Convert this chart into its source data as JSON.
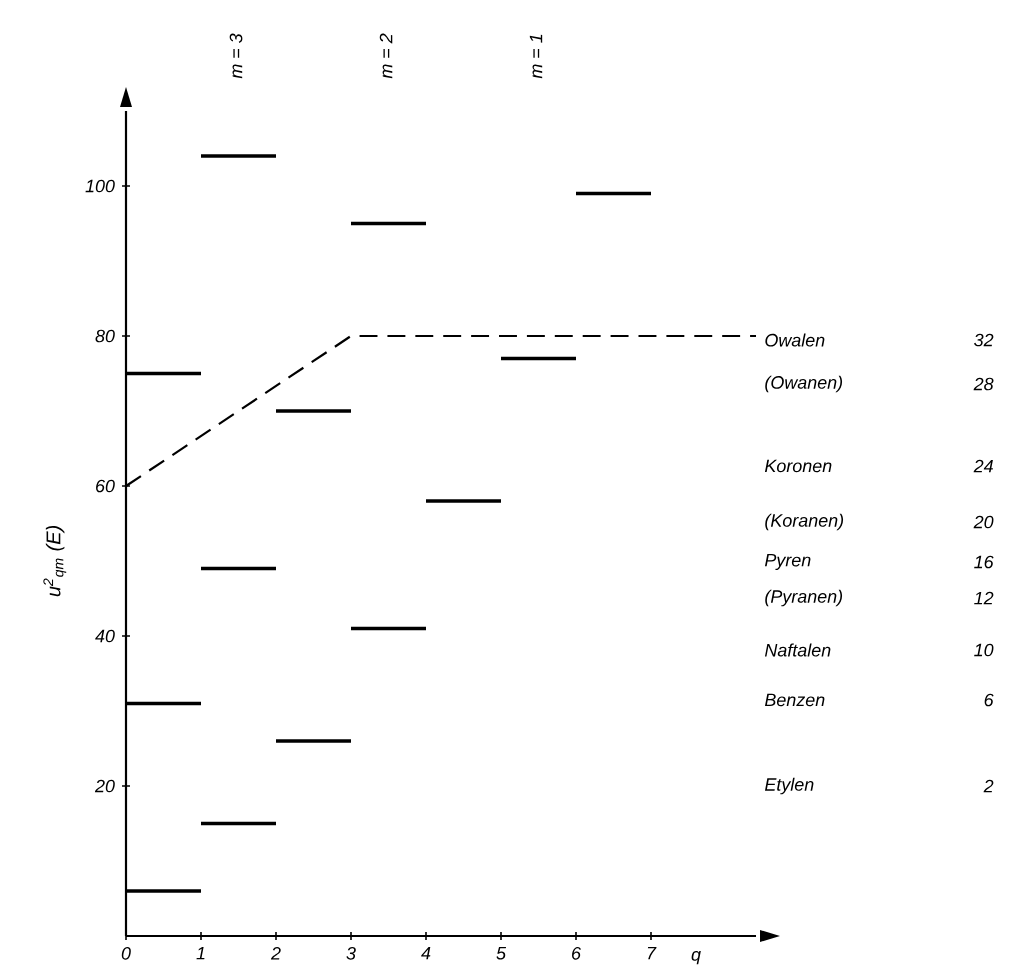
{
  "chart_data": {
    "type": "line",
    "xlabel": "q",
    "ylabel": "u$^{2}$$_{qm}$ (E)",
    "xlim": [
      0,
      8.4
    ],
    "ylim": [
      0,
      110
    ],
    "xticks": [
      0,
      1,
      2,
      3,
      4,
      5,
      6,
      7
    ],
    "yticks": [
      20,
      40,
      60,
      80,
      100
    ],
    "series": [
      {
        "color": "#000000",
        "x": [
          0,
          1
        ],
        "values": [
          6,
          6
        ]
      },
      {
        "color": "#000000",
        "x": [
          0,
          1
        ],
        "values": [
          31,
          31
        ]
      },
      {
        "color": "#000000",
        "x": [
          0,
          1
        ],
        "values": [
          75,
          75
        ]
      },
      {
        "color": "#000000",
        "x": [
          1,
          2
        ],
        "values": [
          15,
          15
        ]
      },
      {
        "color": "#000000",
        "x": [
          1,
          2
        ],
        "values": [
          49,
          49
        ]
      },
      {
        "color": "#000000",
        "x": [
          1,
          2
        ],
        "values": [
          104,
          104
        ]
      },
      {
        "color": "#000000",
        "x": [
          2,
          3
        ],
        "values": [
          26,
          26
        ]
      },
      {
        "color": "#000000",
        "x": [
          2,
          3
        ],
        "values": [
          70,
          70
        ]
      },
      {
        "color": "#000000",
        "x": [
          3,
          4
        ],
        "values": [
          41,
          41
        ]
      },
      {
        "color": "#000000",
        "x": [
          3,
          4
        ],
        "values": [
          95,
          95
        ]
      },
      {
        "color": "#000000",
        "x": [
          4,
          5
        ],
        "values": [
          58,
          58
        ]
      },
      {
        "color": "#000000",
        "x": [
          5,
          6
        ],
        "values": [
          77,
          77
        ]
      },
      {
        "color": "#000000",
        "x": [
          6,
          7
        ],
        "values": [
          99,
          99
        ]
      },
      {
        "color": "#000000",
        "line_style": "dashed",
        "x": [
          0,
          3,
          8.4
        ],
        "values": [
          60,
          80,
          80
        ]
      }
    ],
    "annotations": [
      "m = 3",
      "m = 2",
      "m = 1",
      "Owalen",
      "32",
      "(Owanen)",
      "28",
      "Koronen",
      "24",
      "(Koranen)",
      "20",
      "Pyren",
      "16",
      "(Pyranen)",
      "12",
      "Naftalen",
      "10",
      "Benzen",
      "6",
      "Etylen",
      "2"
    ]
  }
}
